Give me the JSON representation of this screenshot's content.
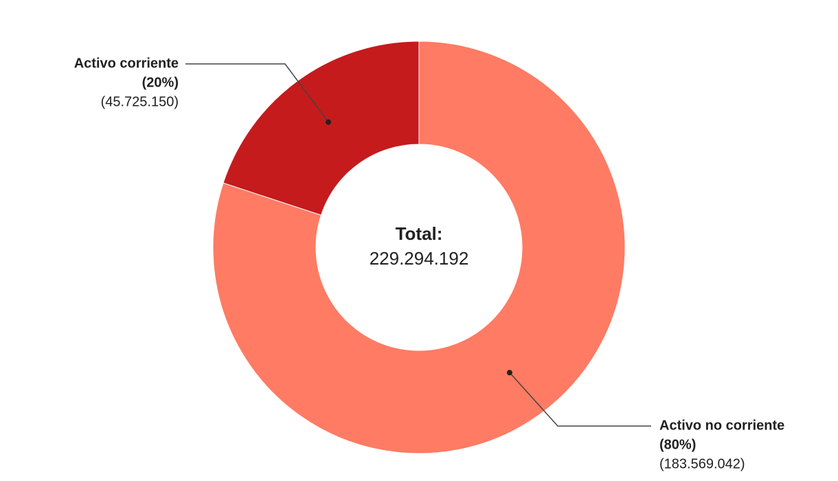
{
  "chart_data": {
    "type": "donut",
    "categories": [
      "Activo corriente",
      "Activo no corriente"
    ],
    "values": [
      45725150,
      183569042
    ],
    "value_labels": [
      "(45.725.150)",
      "(183.569.042)"
    ],
    "percents": [
      20,
      80
    ],
    "percent_labels": [
      "(20%)",
      "(80%)"
    ],
    "colors": [
      "#c51b1d",
      "#ff7b63"
    ],
    "center_title": "Total:",
    "center_value": "229.294.192"
  }
}
